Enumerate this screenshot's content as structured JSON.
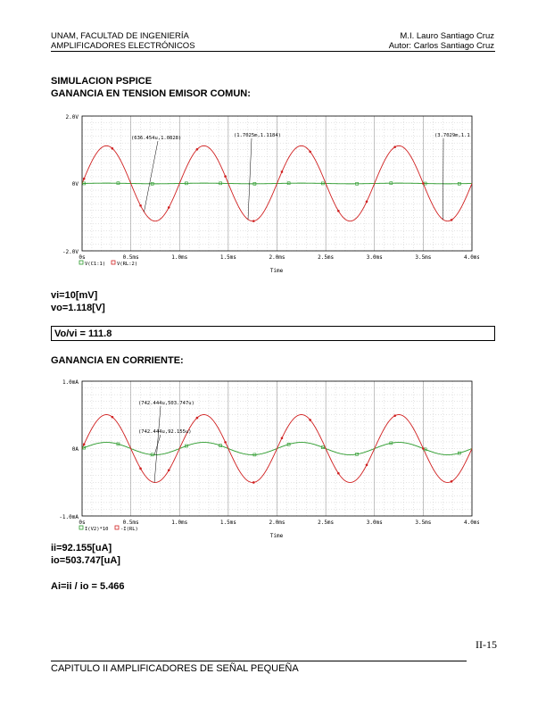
{
  "header": {
    "left_line1": "UNAM, FACULTAD DE INGENIERÍA",
    "left_line2": "AMPLIFICADORES ELECTRÓNICOS",
    "right_line1": "M.I. Lauro Santiago Cruz",
    "right_line2": "Autor: Carlos Santiago Cruz"
  },
  "section1": {
    "title1": "SIMULACION PSPICE",
    "title2": "GANANCIA EN TENSION EMISOR COMUN:"
  },
  "chart1": {
    "y_ticks": [
      "2.0V",
      "0V",
      "-2.0V"
    ],
    "x_ticks": [
      "0s",
      "0.5ms",
      "1.0ms",
      "1.5ms",
      "2.0ms",
      "2.5ms",
      "3.0ms",
      "3.5ms",
      "4.0ms"
    ],
    "x_label": "Time",
    "legend": [
      "V(C1:1)",
      "V(RL:2)"
    ],
    "annotations": [
      "(636.454u,1.0828)",
      "(1.7025m,1.1184)",
      "(3.7029m,1.1"
    ]
  },
  "values1": {
    "vi": "vi=10[mV]",
    "vo": "vo=1.118[V]",
    "ratio": "Vo/vi = 111.8"
  },
  "section2": {
    "title": "GANANCIA EN CORRIENTE:"
  },
  "chart2": {
    "y_ticks": [
      "1.0mA",
      "0A",
      "-1.0mA"
    ],
    "x_ticks": [
      "0s",
      "0.5ms",
      "1.0ms",
      "1.5ms",
      "2.0ms",
      "2.5ms",
      "3.0ms",
      "3.5ms",
      "4.0ms"
    ],
    "x_label": "Time",
    "legend": [
      "I(V2)*10",
      "-I(RL)"
    ],
    "annotations": [
      "(742.444u,503.747u)",
      "(742.444u,92.155u)"
    ]
  },
  "values2": {
    "ii": "ii=92.155[uA]",
    "io": "io=503.747[uA]",
    "ai": "Ai=ii / io = 5.466"
  },
  "footer": {
    "page": "II-15",
    "chapter": "CAPITULO II AMPLIFICADORES DE SEÑAL PEQUEÑA"
  },
  "chart_data": [
    {
      "type": "line",
      "x_unit": "ms",
      "xlim": [
        0,
        4.0
      ],
      "ylim": [
        -2.0,
        2.0
      ],
      "y_unit": "V",
      "xlabel": "Time",
      "grid": true,
      "series": [
        {
          "name": "V(C1:1)",
          "color": "#2a9a2a",
          "amplitude": 0.01,
          "frequency_khz": 1.0,
          "offset": 0,
          "phase": "sin"
        },
        {
          "name": "V(RL:2)",
          "color": "#d02020",
          "amplitude": 1.118,
          "frequency_khz": 1.0,
          "offset": 0,
          "phase": "sin"
        }
      ]
    },
    {
      "type": "line",
      "x_unit": "ms",
      "xlim": [
        0,
        4.0
      ],
      "ylim": [
        -1.0,
        1.0
      ],
      "y_unit": "mA",
      "xlabel": "Time",
      "grid": true,
      "series": [
        {
          "name": "I(V2)*10",
          "color": "#2a9a2a",
          "amplitude": 0.092155,
          "frequency_khz": 1.0,
          "offset": 0,
          "phase": "sin"
        },
        {
          "name": "-I(RL)",
          "color": "#d02020",
          "amplitude": 0.503747,
          "frequency_khz": 1.0,
          "offset": 0,
          "phase": "sin"
        }
      ]
    }
  ]
}
